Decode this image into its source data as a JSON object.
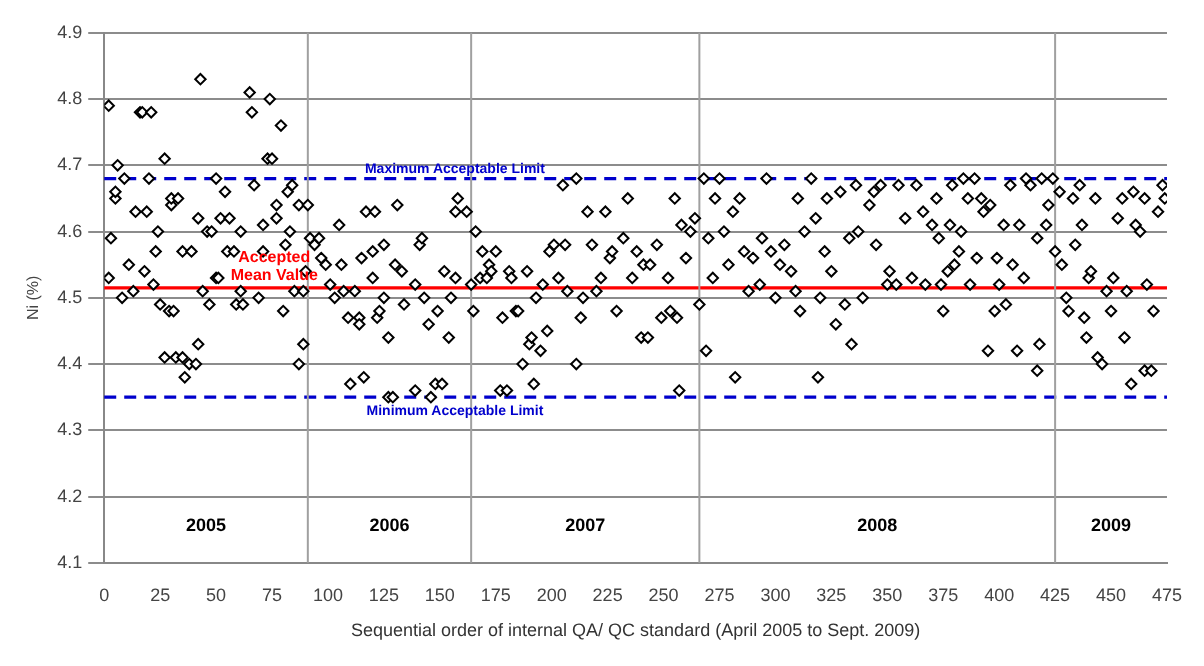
{
  "chart_data": {
    "type": "scatter",
    "xlabel": "Sequential order of internal QA/ QC standard (April 2005 to Sept. 2009)",
    "ylabel": "Ni (%)",
    "xlim": [
      0,
      475
    ],
    "xticks": [
      0,
      25,
      50,
      75,
      100,
      125,
      150,
      175,
      200,
      225,
      250,
      275,
      300,
      325,
      350,
      375,
      400,
      425,
      450,
      475
    ],
    "ylim": [
      4.1,
      4.9
    ],
    "yticks": [
      4.1,
      4.2,
      4.3,
      4.4,
      4.5,
      4.6,
      4.7,
      4.8,
      4.9
    ],
    "grid": "y",
    "legend": false,
    "marker": "diamond",
    "x": [
      2,
      2,
      3,
      5,
      5,
      6,
      8,
      9,
      11,
      13,
      14,
      16,
      17,
      18,
      19,
      20,
      21,
      22,
      23,
      24,
      25,
      27,
      27,
      29,
      30,
      30,
      31,
      32,
      33,
      35,
      35,
      36,
      38,
      39,
      41,
      42,
      42,
      43,
      44,
      46,
      47,
      48,
      50,
      50,
      51,
      52,
      54,
      55,
      56,
      58,
      59,
      61,
      61,
      62,
      65,
      66,
      67,
      69,
      71,
      71,
      73,
      74,
      75,
      77,
      77,
      79,
      80,
      81,
      82,
      83,
      84,
      85,
      87,
      87,
      89,
      89,
      91,
      90,
      92,
      94,
      96,
      97,
      99,
      101,
      103,
      105,
      106,
      107,
      109,
      110,
      112,
      114,
      114,
      115,
      116,
      117,
      120,
      120,
      121,
      122,
      123,
      125,
      125,
      127,
      127,
      129,
      130,
      131,
      133,
      134,
      139,
      139,
      141,
      142,
      143,
      145,
      146,
      148,
      149,
      151,
      152,
      154,
      155,
      157,
      157,
      158,
      162,
      164,
      165,
      166,
      168,
      169,
      171,
      172,
      173,
      175,
      177,
      178,
      180,
      181,
      182,
      184,
      185,
      187,
      189,
      190,
      191,
      192,
      193,
      195,
      196,
      198,
      199,
      201,
      203,
      205,
      206,
      207,
      211,
      211,
      213,
      214,
      216,
      218,
      220,
      222,
      224,
      226,
      227,
      229,
      232,
      234,
      236,
      238,
      240,
      241,
      243,
      244,
      247,
      249,
      252,
      253,
      255,
      256,
      257,
      258,
      260,
      262,
      264,
      266,
      268,
      269,
      270,
      272,
      273,
      275,
      277,
      279,
      281,
      282,
      284,
      286,
      288,
      290,
      293,
      294,
      296,
      298,
      300,
      302,
      304,
      307,
      309,
      310,
      311,
      313,
      316,
      318,
      319,
      320,
      322,
      323,
      325,
      327,
      329,
      331,
      333,
      334,
      336,
      337,
      339,
      342,
      344,
      345,
      347,
      350,
      351,
      354,
      355,
      358,
      361,
      363,
      366,
      367,
      370,
      372,
      373,
      374,
      375,
      377,
      378,
      379,
      380,
      382,
      383,
      384,
      386,
      387,
      389,
      390,
      392,
      393,
      395,
      396,
      398,
      399,
      400,
      402,
      403,
      405,
      406,
      408,
      409,
      411,
      412,
      414,
      417,
      417,
      418,
      419,
      421,
      422,
      424,
      425,
      427,
      428,
      430,
      431,
      433,
      434,
      436,
      437,
      438,
      439,
      440,
      441,
      443,
      444,
      446,
      448,
      450,
      451,
      453,
      455,
      456,
      457,
      459,
      460,
      461,
      463,
      465,
      465,
      466,
      468,
      469,
      471,
      473,
      474
    ],
    "values": [
      4.79,
      4.53,
      4.59,
      4.65,
      4.66,
      4.7,
      4.5,
      4.68,
      4.55,
      4.51,
      4.63,
      4.78,
      4.78,
      4.54,
      4.63,
      4.68,
      4.78,
      4.52,
      4.57,
      4.6,
      4.49,
      4.71,
      4.41,
      4.48,
      4.64,
      4.65,
      4.48,
      4.41,
      4.65,
      4.41,
      4.57,
      4.38,
      4.4,
      4.57,
      4.4,
      4.43,
      4.62,
      4.83,
      4.51,
      4.6,
      4.49,
      4.6,
      4.68,
      4.53,
      4.53,
      4.62,
      4.66,
      4.57,
      4.62,
      4.57,
      4.49,
      4.6,
      4.51,
      4.49,
      4.81,
      4.78,
      4.67,
      4.5,
      4.57,
      4.61,
      4.71,
      4.8,
      4.71,
      4.64,
      4.62,
      4.76,
      4.48,
      4.58,
      4.66,
      4.6,
      4.67,
      4.51,
      4.4,
      4.64,
      4.51,
      4.43,
      4.64,
      4.54,
      4.59,
      4.58,
      4.59,
      4.56,
      4.55,
      4.52,
      4.5,
      4.61,
      4.55,
      4.51,
      4.47,
      4.37,
      4.51,
      4.47,
      4.46,
      4.56,
      4.38,
      4.63,
      4.53,
      4.57,
      4.63,
      4.47,
      4.48,
      4.5,
      4.58,
      4.44,
      4.35,
      4.35,
      4.55,
      4.64,
      4.54,
      4.49,
      4.52,
      4.36,
      4.58,
      4.59,
      4.5,
      4.46,
      4.35,
      4.37,
      4.48,
      4.37,
      4.54,
      4.44,
      4.5,
      4.53,
      4.63,
      4.65,
      4.63,
      4.52,
      4.48,
      4.6,
      4.53,
      4.57,
      4.53,
      4.55,
      4.54,
      4.57,
      4.36,
      4.47,
      4.36,
      4.54,
      4.53,
      4.48,
      4.48,
      4.4,
      4.54,
      4.43,
      4.44,
      4.37,
      4.5,
      4.42,
      4.52,
      4.45,
      4.57,
      4.58,
      4.53,
      4.67,
      4.58,
      4.51,
      4.68,
      4.4,
      4.47,
      4.5,
      4.63,
      4.58,
      4.51,
      4.53,
      4.63,
      4.56,
      4.57,
      4.48,
      4.59,
      4.65,
      4.53,
      4.57,
      4.44,
      4.55,
      4.44,
      4.55,
      4.58,
      4.47,
      4.53,
      4.48,
      4.65,
      4.47,
      4.36,
      4.61,
      4.56,
      4.6,
      4.62,
      4.49,
      4.68,
      4.42,
      4.59,
      4.53,
      4.65,
      4.68,
      4.6,
      4.55,
      4.63,
      4.38,
      4.65,
      4.57,
      4.51,
      4.56,
      4.52,
      4.59,
      4.68,
      4.57,
      4.5,
      4.55,
      4.58,
      4.54,
      4.51,
      4.65,
      4.48,
      4.6,
      4.68,
      4.62,
      4.38,
      4.5,
      4.57,
      4.65,
      4.54,
      4.46,
      4.66,
      4.49,
      4.59,
      4.43,
      4.67,
      4.6,
      4.5,
      4.64,
      4.66,
      4.58,
      4.67,
      4.52,
      4.54,
      4.52,
      4.67,
      4.62,
      4.53,
      4.67,
      4.63,
      4.52,
      4.61,
      4.65,
      4.59,
      4.52,
      4.48,
      4.54,
      4.61,
      4.67,
      4.55,
      4.57,
      4.6,
      4.68,
      4.65,
      4.52,
      4.68,
      4.56,
      4.65,
      4.63,
      4.42,
      4.64,
      4.48,
      4.56,
      4.52,
      4.61,
      4.49,
      4.67,
      4.55,
      4.42,
      4.61,
      4.53,
      4.68,
      4.67,
      4.39,
      4.59,
      4.43,
      4.68,
      4.61,
      4.64,
      4.68,
      4.57,
      4.66,
      4.55,
      4.5,
      4.48,
      4.65,
      4.58,
      4.67,
      4.61,
      4.47,
      4.44,
      4.53,
      4.54,
      4.65,
      4.41,
      4.4,
      4.51,
      4.48,
      4.53,
      4.62,
      4.65,
      4.44,
      4.51,
      4.37,
      4.66,
      4.61,
      4.6,
      4.65,
      4.39,
      4.52,
      4.39,
      4.48,
      4.63,
      4.67,
      4.65
    ],
    "color": "#000000",
    "ref_lines": [
      {
        "axis": "y",
        "value": 4.68,
        "label": "Maximum Acceptable Limit",
        "color": "#0000cc",
        "line_style": "dashed"
      },
      {
        "axis": "y",
        "value": 4.515,
        "label": "Accepted Mean Value",
        "color": "#ff0000",
        "line_style": "solid"
      },
      {
        "axis": "y",
        "value": 4.35,
        "label": "Minimum Acceptable Limit",
        "color": "#0000cc",
        "line_style": "dashed"
      },
      {
        "axis": "x",
        "value": 91,
        "label": null,
        "color": "#a0a0a0",
        "line_style": "solid"
      },
      {
        "axis": "x",
        "value": 164,
        "label": null,
        "color": "#a0a0a0",
        "line_style": "solid"
      },
      {
        "axis": "x",
        "value": 266,
        "label": null,
        "color": "#a0a0a0",
        "line_style": "solid"
      },
      {
        "axis": "x",
        "value": 425,
        "label": null,
        "color": "#a0a0a0",
        "line_style": "solid"
      }
    ],
    "annotations": [
      "2005",
      "2006",
      "2007",
      "2008",
      "2009"
    ]
  }
}
